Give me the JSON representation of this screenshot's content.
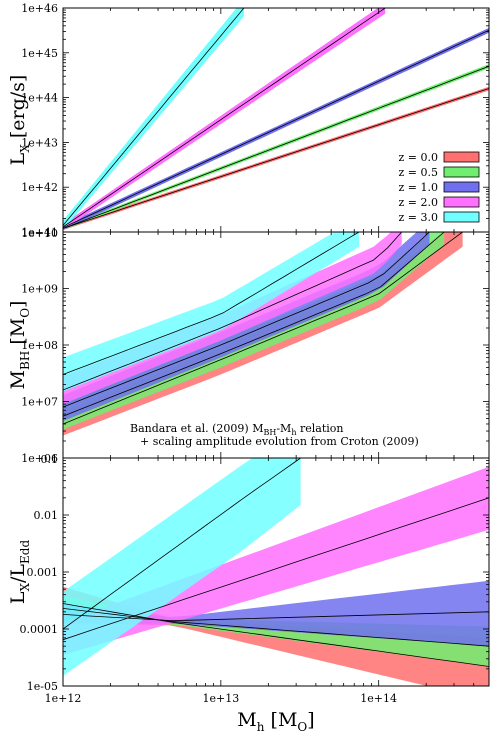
{
  "chart_data": [
    {
      "type": "area",
      "ylabel": "L",
      "ylabel_sub": "X",
      "ylabel_unit": " [erg/s]",
      "x_scale": "log",
      "y_scale": "log",
      "xlim": [
        1000000000000.0,
        500000000000000.0
      ],
      "ylim": [
        1e+41,
        1e+46
      ],
      "yticks": [
        1e+41,
        1e+42,
        1e+43,
        1e+44,
        1e+45,
        1e+46
      ],
      "ytick_labels": [
        "1e+41",
        "1e+42",
        "1e+43",
        "1e+44",
        "1e+45",
        "1e+46"
      ],
      "legend_position": "bottom-right",
      "series": [
        {
          "name": "z = 0.0",
          "color": "#ff7070",
          "x": [
            1000000000000.0,
            500000000000000.0
          ],
          "y": [
            1.2e+41,
            1.6e+44
          ],
          "y_low": [
            1.1e+41,
            1.45e+44
          ],
          "y_high": [
            1.3e+41,
            1.75e+44
          ]
        },
        {
          "name": "z = 0.5",
          "color": "#70ee70",
          "x": [
            1000000000000.0,
            500000000000000.0
          ],
          "y": [
            1.2e+41,
            5e+44
          ],
          "y_low": [
            1.1e+41,
            4.5e+44
          ],
          "y_high": [
            1.3e+41,
            5.6e+44
          ]
        },
        {
          "name": "z = 1.0",
          "color": "#7070ee",
          "x": [
            1000000000000.0,
            500000000000000.0
          ],
          "y": [
            1.25e+41,
            3.2e+45
          ],
          "y_low": [
            1.1e+41,
            2.8e+45
          ],
          "y_high": [
            1.4e+41,
            3.6e+45
          ]
        },
        {
          "name": "z = 2.0",
          "color": "#ff70ff",
          "x": [
            1000000000000.0,
            110000000000000.0
          ],
          "y": [
            1.3e+41,
            1e+46
          ],
          "y_low": [
            1.1e+41,
            7.5e+45
          ],
          "y_high": [
            1.5e+41,
            1.3e+46
          ]
        },
        {
          "name": "z = 3.0",
          "color": "#70ffff",
          "x": [
            1000000000000.0,
            14000000000000.0
          ],
          "y": [
            1.4e+41,
            1e+46
          ],
          "y_low": [
            1.1e+41,
            6.5e+45
          ],
          "y_high": [
            1.8e+41,
            1.6e+46
          ]
        }
      ]
    },
    {
      "type": "area",
      "ylabel": "M",
      "ylabel_sub": "BH",
      "ylabel_unit": " [M",
      "ylabel_unit_sub": "O",
      "ylabel_unit_end": "]",
      "x_scale": "log",
      "y_scale": "log",
      "xlim": [
        1000000000000.0,
        500000000000000.0
      ],
      "ylim": [
        1000000.0,
        10000000000.0
      ],
      "yticks": [
        1000000.0,
        10000000.0,
        100000000.0,
        1000000000.0,
        10000000000.0
      ],
      "ytick_labels": [
        "1e+06",
        "1e+07",
        "1e+08",
        "1e+09",
        "1e+10"
      ],
      "annotation": {
        "line1": "Bandara et al. (2009) M",
        "line1_sub1": "BH",
        "line1_mid": "-M",
        "line1_sub2": "h",
        "line1_end": " relation",
        "line2": "+ scaling amplitude evolution from Croton (2009)"
      },
      "series": [
        {
          "name": "z = 0.0",
          "color": "#ff7070",
          "x": [
            1000000000000.0,
            10000000000000.0,
            100000000000000.0,
            340000000000000.0
          ],
          "y": [
            4000000.0,
            55000000.0,
            800000000.0,
            10000000000.0
          ],
          "y_low": [
            2500000.0,
            30000000.0,
            450000000.0,
            5500000000.0
          ],
          "y_high": [
            6500000.0,
            90000000.0,
            1400000000.0,
            18000000000.0
          ]
        },
        {
          "name": "z = 0.5",
          "color": "#70ee70",
          "x": [
            1000000000000.0,
            10000000000000.0,
            100000000000000.0,
            260000000000000.0
          ],
          "y": [
            5500000.0,
            70000000.0,
            1000000000.0,
            10000000000.0
          ],
          "y_low": [
            3200000.0,
            40000000.0,
            600000000.0,
            6000000000.0
          ],
          "y_high": [
            9000000.0,
            120000000.0,
            1700000000.0,
            16000000000.0
          ]
        },
        {
          "name": "z = 1.0",
          "color": "#7070ee",
          "x": [
            1000000000000.0,
            10000000000000.0,
            100000000000000.0,
            210000000000000.0
          ],
          "y": [
            8000000.0,
            100000000.0,
            1500000000.0,
            10000000000.0
          ],
          "y_low": [
            4500000.0,
            60000000.0,
            900000000.0,
            6000000000.0
          ],
          "y_high": [
            13000000.0,
            170000000.0,
            2500000000.0,
            16000000000.0
          ]
        },
        {
          "name": "z = 2.0",
          "color": "#ff70ff",
          "x": [
            1000000000000.0,
            10000000000000.0,
            100000000000000.0,
            140000000000000.0
          ],
          "y": [
            16000000.0,
            200000000.0,
            3500000000.0,
            10000000000.0
          ],
          "y_low": [
            9000000.0,
            120000000.0,
            2000000000.0,
            6000000000.0
          ],
          "y_high": [
            28000000.0,
            340000000.0,
            6000000000.0,
            16000000000.0
          ]
        },
        {
          "name": "z = 3.0",
          "color": "#70ffff",
          "x": [
            1000000000000.0,
            10000000000000.0,
            75000000000000.0
          ],
          "y": [
            30000000.0,
            350000000.0,
            10000000000.0
          ],
          "y_low": [
            15000000.0,
            180000000.0,
            5500000000.0
          ],
          "y_high": [
            60000000.0,
            650000000.0,
            18000000000.0
          ]
        }
      ]
    },
    {
      "type": "area",
      "ylabel": "L",
      "ylabel_sub": "X",
      "ylabel_mid": "/L",
      "ylabel_sub2": "Edd",
      "x_scale": "log",
      "y_scale": "log",
      "xlim": [
        1000000000000.0,
        500000000000000.0
      ],
      "ylim": [
        1e-05,
        0.1
      ],
      "xlabel": "M",
      "xlabel_sub": "h",
      "xlabel_unit": " [M",
      "xlabel_unit_sub": "O",
      "xlabel_unit_end": "]",
      "yticks": [
        1e-05,
        0.0001,
        0.001,
        0.01,
        0.1
      ],
      "ytick_labels": [
        "1e-05",
        "0.0001",
        "0.001",
        "0.01",
        "0.1"
      ],
      "xticks": [
        1000000000000.0,
        10000000000000.0,
        100000000000000.0
      ],
      "xtick_labels": [
        "1e+12",
        "1e+13",
        "1e+14"
      ],
      "series": [
        {
          "name": "z = 0.0",
          "color": "#ff7070",
          "x": [
            1000000000000.0,
            5000000000000.0,
            500000000000000.0
          ],
          "y": [
            0.00028,
            0.00013,
            2.2e-05
          ],
          "y_low": [
            0.00013,
            0.000115,
            5.5e-06
          ],
          "y_high": [
            0.00055,
            0.00015,
            7e-05
          ]
        },
        {
          "name": "z = 0.5",
          "color": "#70ee70",
          "x": [
            1000000000000.0,
            5000000000000.0,
            500000000000000.0
          ],
          "y": [
            0.00023,
            0.000135,
            5e-05
          ],
          "y_low": [
            0.00013,
            0.00012,
            2.2e-05
          ],
          "y_high": [
            0.00038,
            0.000155,
            0.00011
          ]
        },
        {
          "name": "z = 1.0",
          "color": "#7070ee",
          "x": [
            1000000000000.0,
            5000000000000.0,
            500000000000000.0
          ],
          "y": [
            0.00018,
            0.00014,
            0.0002
          ],
          "y_low": [
            0.00012,
            0.000125,
            5e-05
          ],
          "y_high": [
            0.00028,
            0.00016,
            0.0007
          ]
        },
        {
          "name": "z = 2.0",
          "color": "#ff70ff",
          "x": [
            1000000000000.0,
            500000000000000.0
          ],
          "y": [
            6.5e-05,
            0.02
          ],
          "y_low": [
            3.5e-05,
            0.0055
          ],
          "y_high": [
            0.00013,
            0.07
          ]
        },
        {
          "name": "z = 3.0",
          "color": "#70ffff",
          "x": [
            1000000000000.0,
            14000000000000.0,
            32000000000000.0
          ],
          "y": [
            0.0001,
            0.02,
            0.1
          ],
          "y_low": [
            1.5e-05,
            0.0025,
            0.015
          ],
          "y_high": [
            0.00045,
            0.08,
            0.35
          ]
        }
      ]
    }
  ]
}
